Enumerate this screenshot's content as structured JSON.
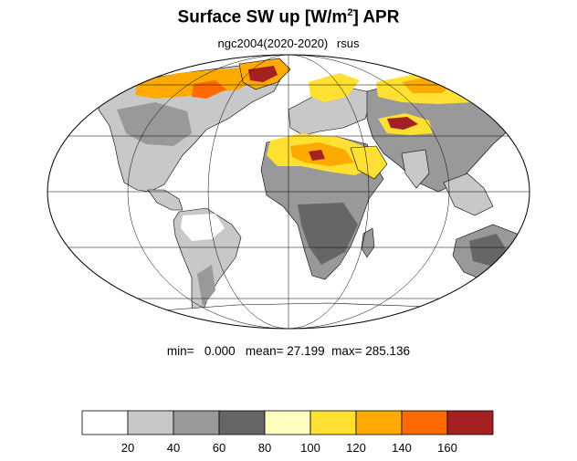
{
  "title": "Surface SW up [W/m",
  "title_sup": "2",
  "title_tail": "]  APR",
  "subtitle_left": "ngc2004(2020-2020)",
  "subtitle_right": "rsus",
  "stats": {
    "min_label": "min=",
    "min_value": "0.000",
    "mean_label": "mean=",
    "mean_value": "27.199",
    "max_label": "max=",
    "max_value": "285.136"
  },
  "legend": {
    "colors": [
      "#ffffff",
      "#c8c8c8",
      "#999999",
      "#666666",
      "#ffffc0",
      "#ffe033",
      "#ffaa00",
      "#ff6a00",
      "#a52020"
    ],
    "ticks": [
      "20",
      "40",
      "60",
      "80",
      "100",
      "120",
      "140",
      "160"
    ]
  },
  "map": {
    "projection": "mollweide",
    "ocean_color": "#ffffff",
    "coast_color": "#000000",
    "grid_color": "#000000"
  }
}
